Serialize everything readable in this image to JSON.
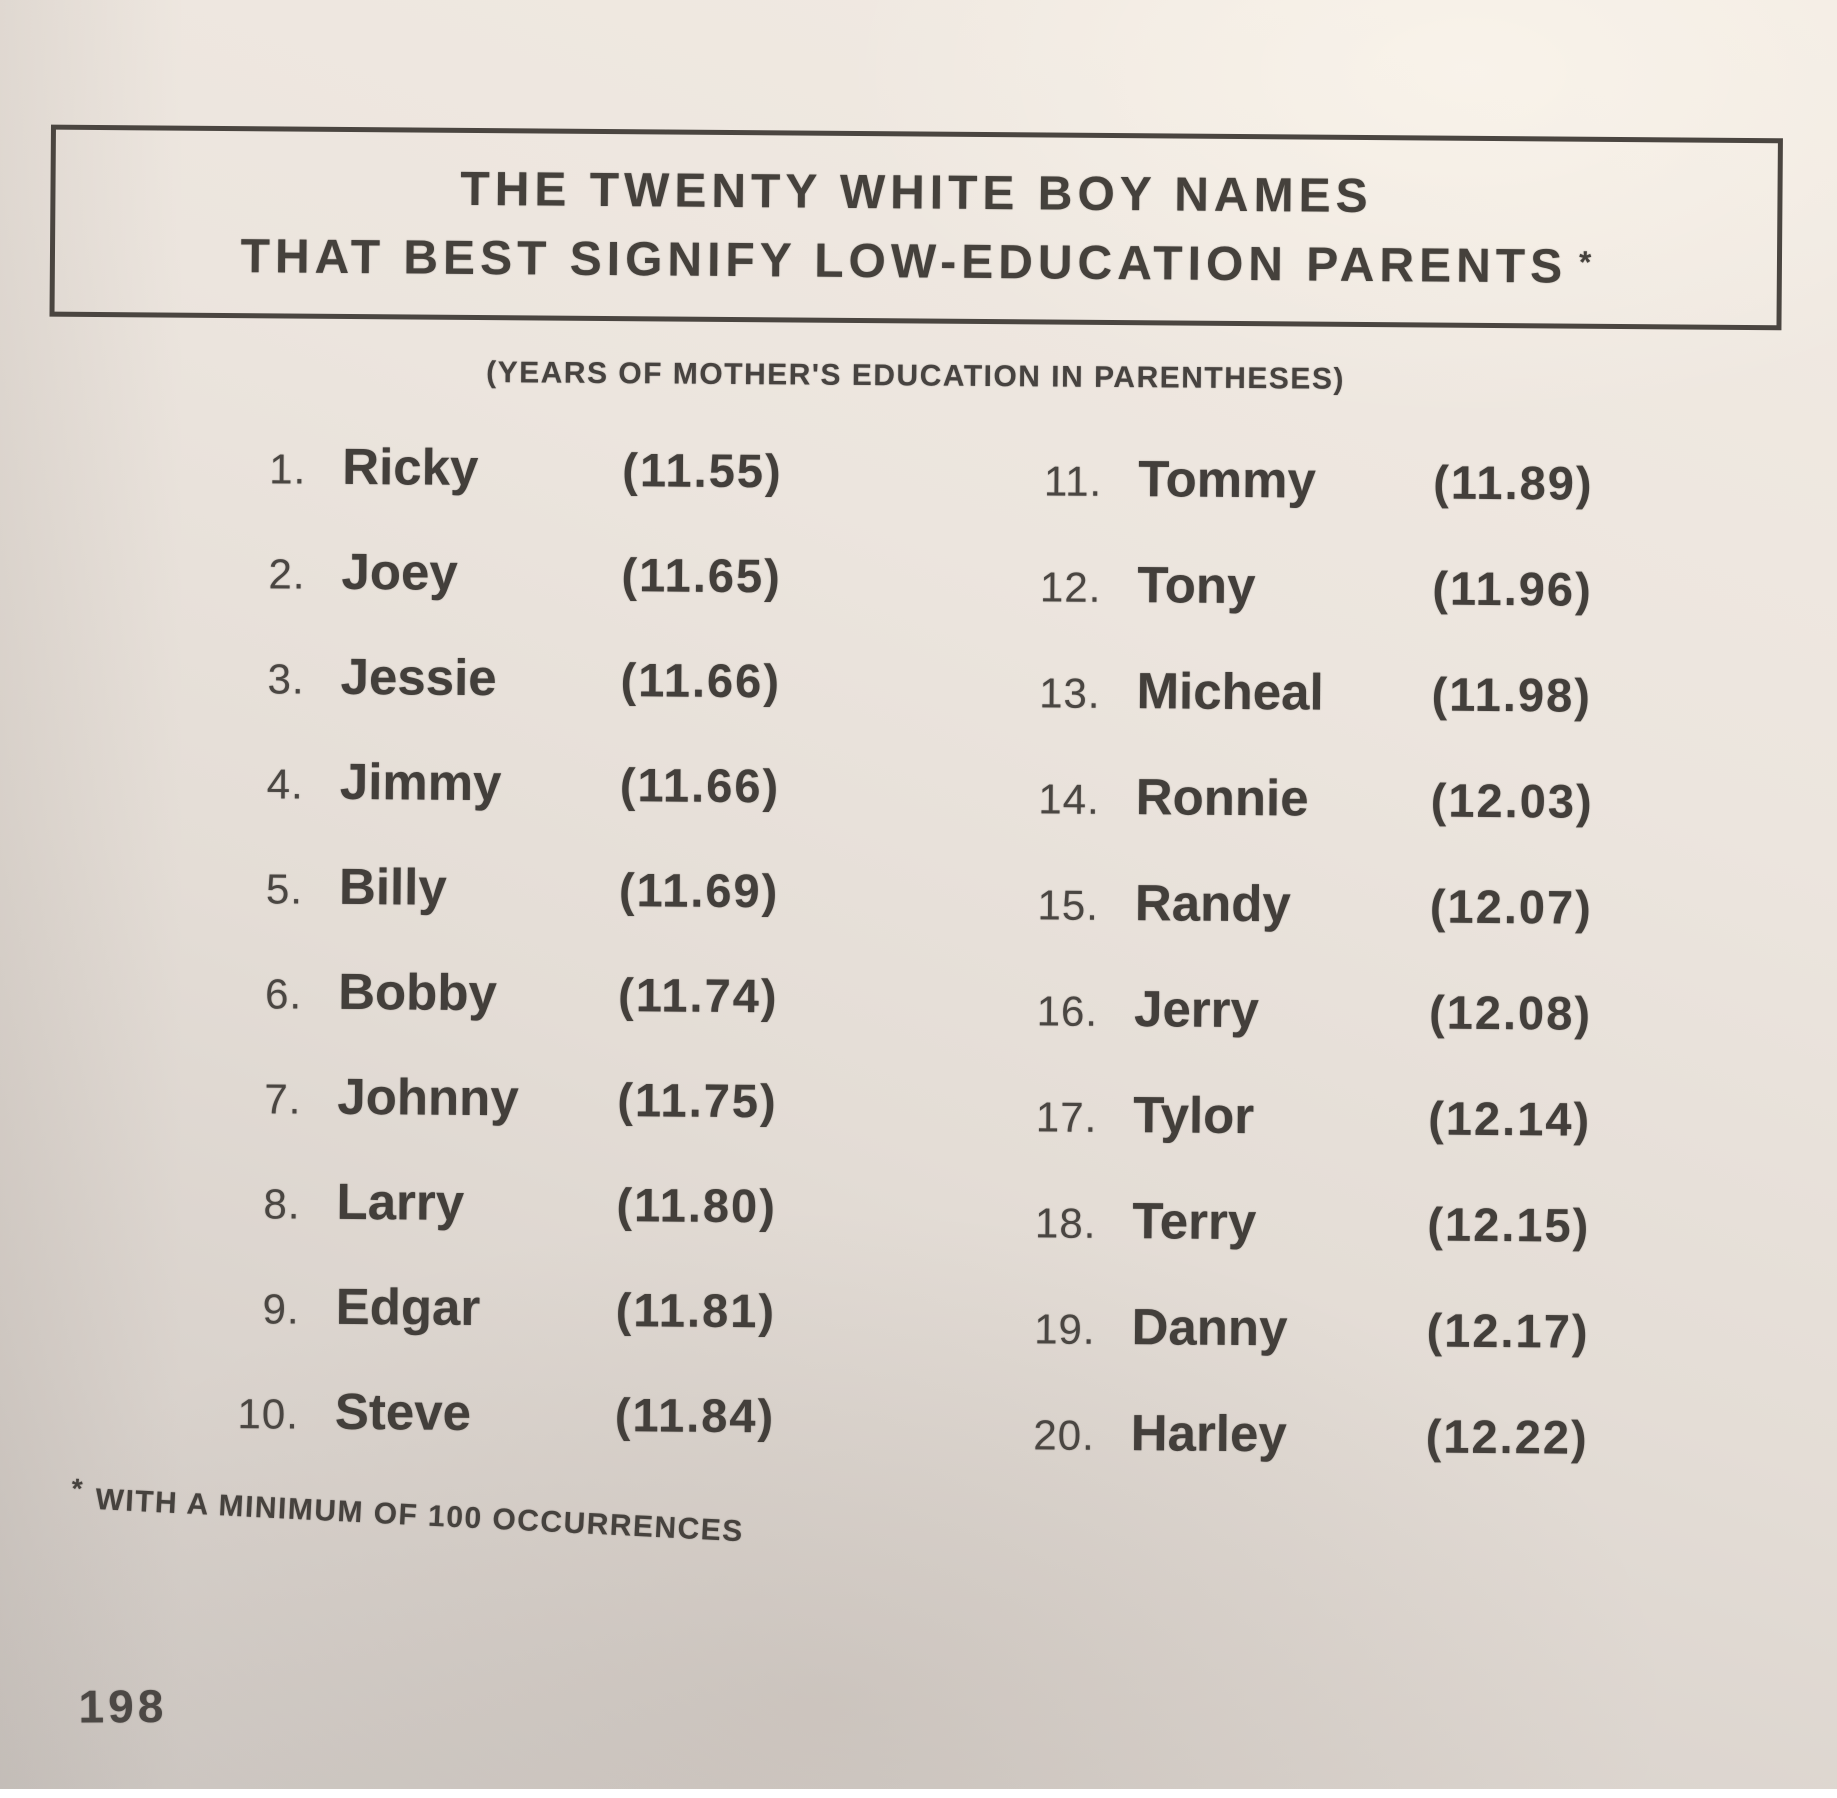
{
  "header": {
    "title_line1": "THE TWENTY WHITE BOY NAMES",
    "title_line2": "THAT BEST SIGNIFY LOW-EDUCATION PARENTS",
    "title_asterisk": "*",
    "subtitle": "(YEARS OF MOTHER'S EDUCATION IN PARENTHESES)"
  },
  "list": {
    "left": [
      {
        "rank": "1.",
        "name": "Ricky",
        "value": "(11.55)"
      },
      {
        "rank": "2.",
        "name": "Joey",
        "value": "(11.65)"
      },
      {
        "rank": "3.",
        "name": "Jessie",
        "value": "(11.66)"
      },
      {
        "rank": "4.",
        "name": "Jimmy",
        "value": "(11.66)"
      },
      {
        "rank": "5.",
        "name": "Billy",
        "value": "(11.69)"
      },
      {
        "rank": "6.",
        "name": "Bobby",
        "value": "(11.74)"
      },
      {
        "rank": "7.",
        "name": "Johnny",
        "value": "(11.75)"
      },
      {
        "rank": "8.",
        "name": "Larry",
        "value": "(11.80)"
      },
      {
        "rank": "9.",
        "name": "Edgar",
        "value": "(11.81)"
      },
      {
        "rank": "10.",
        "name": "Steve",
        "value": "(11.84)"
      }
    ],
    "right": [
      {
        "rank": "11.",
        "name": "Tommy",
        "value": "(11.89)"
      },
      {
        "rank": "12.",
        "name": "Tony",
        "value": "(11.96)"
      },
      {
        "rank": "13.",
        "name": "Micheal",
        "value": "(11.98)"
      },
      {
        "rank": "14.",
        "name": "Ronnie",
        "value": "(12.03)"
      },
      {
        "rank": "15.",
        "name": "Randy",
        "value": "(12.07)"
      },
      {
        "rank": "16.",
        "name": "Jerry",
        "value": "(12.08)"
      },
      {
        "rank": "17.",
        "name": "Tylor",
        "value": "(12.14)"
      },
      {
        "rank": "18.",
        "name": "Terry",
        "value": "(12.15)"
      },
      {
        "rank": "19.",
        "name": "Danny",
        "value": "(12.17)"
      },
      {
        "rank": "20.",
        "name": "Harley",
        "value": "(12.22)"
      }
    ]
  },
  "footnote": {
    "marker": "*",
    "text": "WITH A MINIMUM OF 100 OCCURRENCES"
  },
  "footer": {
    "page_number": "198"
  },
  "colors": {
    "paper_light": "#f2ebe3",
    "paper_dark": "#cdc7c2",
    "ink": "#433f3b"
  }
}
